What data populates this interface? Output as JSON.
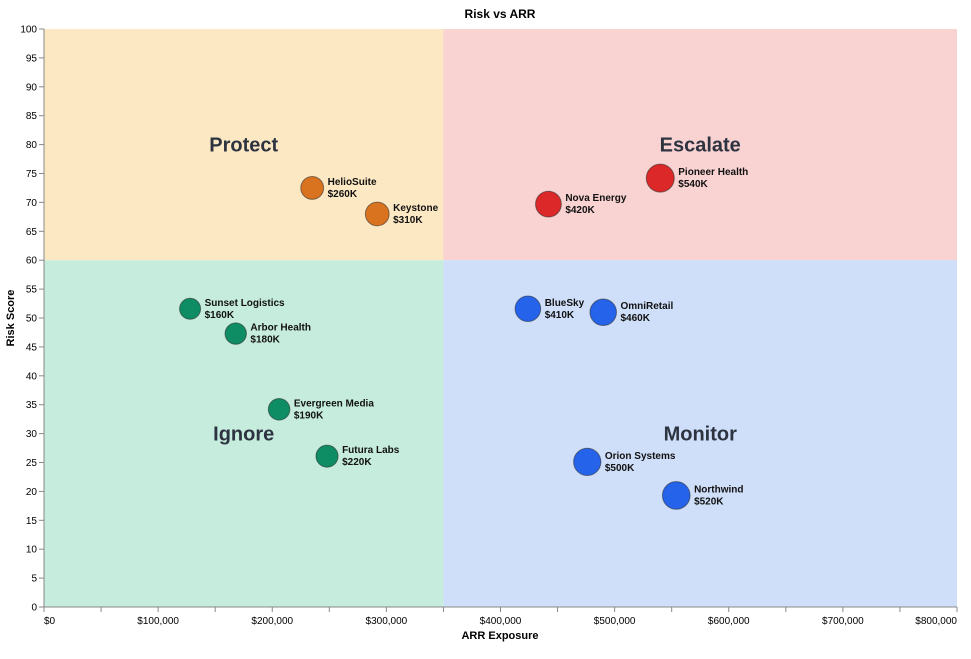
{
  "chart_data": {
    "type": "scatter",
    "title": "Risk vs ARR",
    "xlabel": "ARR Exposure",
    "ylabel": "Risk Score",
    "xlim": [
      0,
      800000
    ],
    "ylim": [
      0,
      100
    ],
    "x_ticks": [
      0,
      100000,
      200000,
      300000,
      400000,
      500000,
      600000,
      700000,
      800000
    ],
    "x_tick_labels": [
      "$0",
      "$100,000",
      "$200,000",
      "$300,000",
      "$400,000",
      "$500,000",
      "$600,000",
      "$700,000",
      "$800,000"
    ],
    "x_minor_ticks": [
      50000,
      150000,
      250000,
      350000,
      450000,
      550000,
      650000,
      750000
    ],
    "y_ticks": [
      0,
      5,
      10,
      15,
      20,
      25,
      30,
      35,
      40,
      45,
      50,
      55,
      60,
      65,
      70,
      75,
      80,
      85,
      90,
      95,
      100
    ],
    "grid": false,
    "quadrant_split": {
      "x": 350000,
      "y": 60
    },
    "quadrants": [
      {
        "label": "Protect",
        "x_range": [
          0,
          350000
        ],
        "y_range": [
          60,
          100
        ],
        "label_at": [
          175000,
          80
        ],
        "color": "#fde8c4"
      },
      {
        "label": "Escalate",
        "x_range": [
          350000,
          800000
        ],
        "y_range": [
          60,
          100
        ],
        "label_at": [
          575000,
          80
        ],
        "color": "#f9d2d2"
      },
      {
        "label": "Ignore",
        "x_range": [
          0,
          350000
        ],
        "y_range": [
          0,
          60
        ],
        "label_at": [
          175000,
          30
        ],
        "color": "#c6ecdd"
      },
      {
        "label": "Monitor",
        "x_range": [
          350000,
          800000
        ],
        "y_range": [
          0,
          60
        ],
        "label_at": [
          575000,
          30
        ],
        "color": "#cfdff9"
      }
    ],
    "colors": {
      "Protect": "#d97320",
      "Escalate": "#dc2828",
      "Ignore": "#0e8c63",
      "Monitor": "#2563eb"
    },
    "points": [
      {
        "name": "HelioSuite",
        "label": "$260K",
        "x": 235000,
        "y": 72.5,
        "size": 260,
        "quadrant": "Protect"
      },
      {
        "name": "Keystone",
        "label": "$310K",
        "x": 292000,
        "y": 68,
        "size": 310,
        "quadrant": "Protect"
      },
      {
        "name": "Pioneer Health",
        "label": "$540K",
        "x": 540000,
        "y": 74.2,
        "size": 540,
        "quadrant": "Escalate"
      },
      {
        "name": "Nova Energy",
        "label": "$420K",
        "x": 442000,
        "y": 69.7,
        "size": 420,
        "quadrant": "Escalate"
      },
      {
        "name": "Sunset Logistics",
        "label": "$160K",
        "x": 128000,
        "y": 51.6,
        "size": 160,
        "quadrant": "Ignore"
      },
      {
        "name": "Arbor Health",
        "label": "$180K",
        "x": 168000,
        "y": 47.3,
        "size": 180,
        "quadrant": "Ignore"
      },
      {
        "name": "Evergreen Media",
        "label": "$190K",
        "x": 206000,
        "y": 34.2,
        "size": 190,
        "quadrant": "Ignore"
      },
      {
        "name": "Futura Labs",
        "label": "$220K",
        "x": 248000,
        "y": 26.1,
        "size": 220,
        "quadrant": "Ignore"
      },
      {
        "name": "BlueSky",
        "label": "$410K",
        "x": 424000,
        "y": 51.6,
        "size": 410,
        "quadrant": "Monitor"
      },
      {
        "name": "OmniRetail",
        "label": "$460K",
        "x": 490000,
        "y": 51,
        "size": 460,
        "quadrant": "Monitor"
      },
      {
        "name": "Orion Systems",
        "label": "$500K",
        "x": 476000,
        "y": 25.1,
        "size": 500,
        "quadrant": "Monitor"
      },
      {
        "name": "Northwind",
        "label": "$520K",
        "x": 554000,
        "y": 19.3,
        "size": 520,
        "quadrant": "Monitor"
      }
    ]
  }
}
